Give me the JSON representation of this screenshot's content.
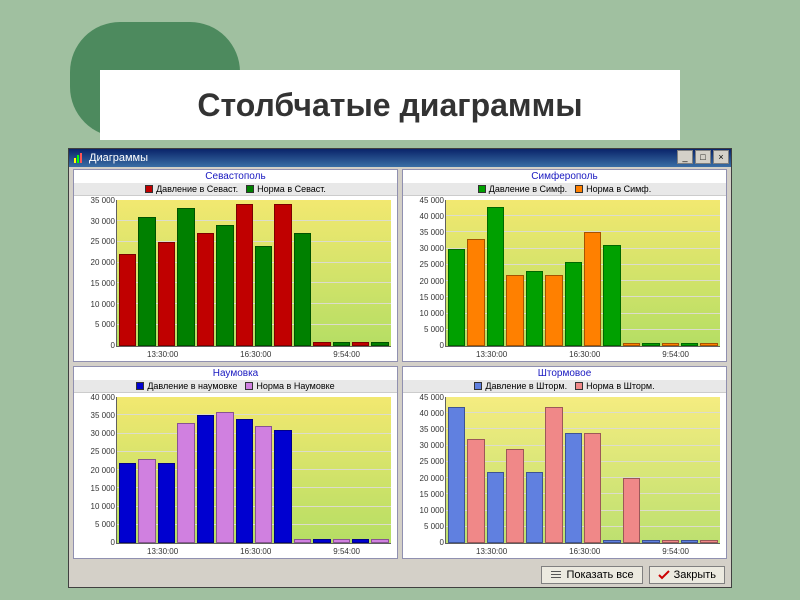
{
  "page_title": "Столбчатые диаграммы",
  "app_window": {
    "title": "Диаграммы",
    "icon_name": "chart-icon",
    "bg_title_from": "#0a246a",
    "bg_title_to": "#3a6ea5"
  },
  "buttons": {
    "show_all": {
      "label": "Показать все"
    },
    "close": {
      "label": "Закрыть"
    }
  },
  "x_categories": [
    "13:30:00",
    "16:30:00",
    "9:54:00"
  ],
  "charts": {
    "sevastopol": {
      "type": "bar",
      "title": "Севастополь",
      "title_color": "#1818c0",
      "series": [
        {
          "label": "Давление в Севаст.",
          "color": "#c00000"
        },
        {
          "label": "Норма в Севаст.",
          "color": "#008000"
        }
      ],
      "ylim": [
        0,
        35000
      ],
      "ytick_step": 5000,
      "y_ticks": [
        "0",
        "5 000",
        "10 000",
        "15 000",
        "20 000",
        "25 000",
        "30 000",
        "35 000"
      ],
      "plot_bg_from": "#f2e870",
      "plot_bg_to": "#b5de64",
      "values": [
        [
          22000,
          31000
        ],
        [
          25000,
          33000
        ],
        [
          27000,
          29000
        ],
        [
          34000,
          24000
        ],
        [
          34000,
          27000
        ],
        [
          1000,
          1000
        ],
        [
          1000,
          1000
        ]
      ]
    },
    "simferopol": {
      "type": "bar",
      "title": "Симферополь",
      "title_color": "#1818c0",
      "series": [
        {
          "label": "Давление в Симф.",
          "color": "#00a000"
        },
        {
          "label": "Норма в Симф.",
          "color": "#ff8000"
        }
      ],
      "ylim": [
        0,
        45000
      ],
      "ytick_step": 5000,
      "y_ticks": [
        "0",
        "5 000",
        "10 000",
        "15 000",
        "20 000",
        "25 000",
        "30 000",
        "35 000",
        "40 000",
        "45 000"
      ],
      "plot_bg_from": "#f2e870",
      "plot_bg_to": "#b5de64",
      "values": [
        [
          30000,
          33000
        ],
        [
          43000,
          22000
        ],
        [
          23000,
          22000
        ],
        [
          26000,
          35000
        ],
        [
          31000,
          1000
        ],
        [
          1000,
          1000
        ],
        [
          1000,
          1000
        ]
      ]
    },
    "naumovka": {
      "type": "bar",
      "title": "Наумовка",
      "title_color": "#1818c0",
      "series": [
        {
          "label": "Давление в наумовке",
          "color": "#0000d0"
        },
        {
          "label": "Норма в Наумовке",
          "color": "#d080e0"
        }
      ],
      "ylim": [
        0,
        40000
      ],
      "ytick_step": 5000,
      "y_ticks": [
        "0",
        "5 000",
        "10 000",
        "15 000",
        "20 000",
        "25 000",
        "30 000",
        "35 000",
        "40 000"
      ],
      "plot_bg_from": "#f2e870",
      "plot_bg_to": "#b5de64",
      "values": [
        [
          22000,
          23000
        ],
        [
          22000,
          33000
        ],
        [
          35000,
          36000
        ],
        [
          34000,
          32000
        ],
        [
          31000,
          1000
        ],
        [
          1000,
          1000
        ],
        [
          1000,
          1000
        ]
      ]
    },
    "shtormovoe": {
      "type": "bar",
      "title": "Штормовое",
      "title_color": "#1818c0",
      "series": [
        {
          "label": "Давление в Шторм.",
          "color": "#6080e0"
        },
        {
          "label": "Норма в Шторм.",
          "color": "#f08888"
        }
      ],
      "ylim": [
        0,
        45000
      ],
      "ytick_step": 5000,
      "y_ticks": [
        "0",
        "5 000",
        "10 000",
        "15 000",
        "20 000",
        "25 000",
        "30 000",
        "35 000",
        "40 000",
        "45 000"
      ],
      "plot_bg_from": "#f5ec80",
      "plot_bg_to": "#bde070",
      "values": [
        [
          42000,
          32000
        ],
        [
          22000,
          29000
        ],
        [
          22000,
          42000
        ],
        [
          34000,
          34000
        ],
        [
          1000,
          20000
        ],
        [
          1000,
          1000
        ],
        [
          1000,
          1000
        ]
      ]
    }
  }
}
